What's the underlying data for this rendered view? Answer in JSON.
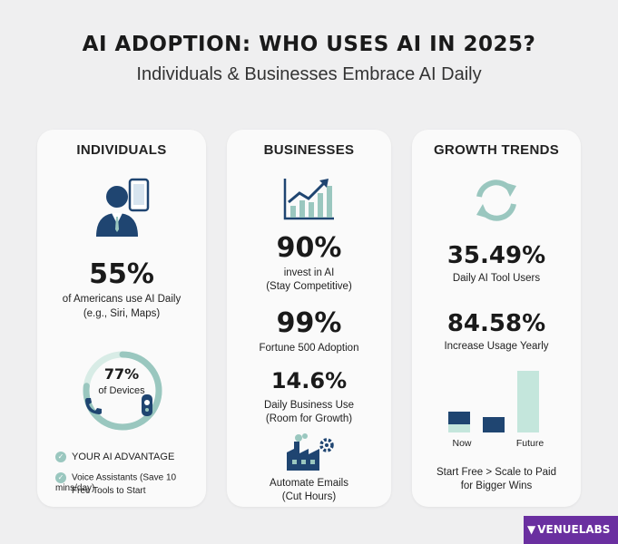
{
  "header": {
    "title": "AI ADOPTION: WHO USES AI IN 2025?",
    "subtitle": "Individuals & Businesses Embrace AI Daily"
  },
  "individuals": {
    "heading": "INDIVIDUALS",
    "stat_value": "55%",
    "stat_line1": "of Americans use AI Daily",
    "stat_line2": "(e.g., Siri, Maps)",
    "ring_value": "77%",
    "ring_label": "of Devices",
    "ring_fraction": 0.77,
    "advantage_label": "YOUR AI ADVANTAGE",
    "bullet_line1": "Voice Assistants (Save 10 mins/day)",
    "bullet_line2": "Free Tools to Start"
  },
  "businesses": {
    "heading": "BUSINESSES",
    "stat1_value": "90%",
    "stat1_line1": "invest in AI",
    "stat1_line2": "(Stay Competitive)",
    "stat2_value": "99%",
    "stat2_line1": "Fortune 500 Adoption",
    "stat3_value": "14.6%",
    "stat3_line1": "Daily Business Use",
    "stat3_line2": "(Room for Growth)",
    "auto_line1": "Automate Emails",
    "auto_line2": "(Cut Hours)"
  },
  "growth": {
    "heading": "GROWTH TRENDS",
    "stat1_value": "35.49%",
    "stat1_line1": "Daily AI Tool Users",
    "stat2_value": "84.58%",
    "stat2_line1": "Increase Usage Yearly",
    "label_now": "Now",
    "label_future": "Future",
    "footer_line1": "Start Free > Scale to Paid",
    "footer_line2": "for Bigger Wins"
  },
  "logo": {
    "text": "VENUELABS"
  },
  "colors": {
    "navy": "#1f4571",
    "teal": "#9ac7bf",
    "mint": "#c4e6dc",
    "purple": "#6a2fa0"
  },
  "icons": [
    "person-phone-icon",
    "donut-ring-icon",
    "phone-handset-icon",
    "speaker-icon",
    "check-icon",
    "bar-trend-icon",
    "refresh-cycle-icon",
    "factory-gear-icon"
  ]
}
